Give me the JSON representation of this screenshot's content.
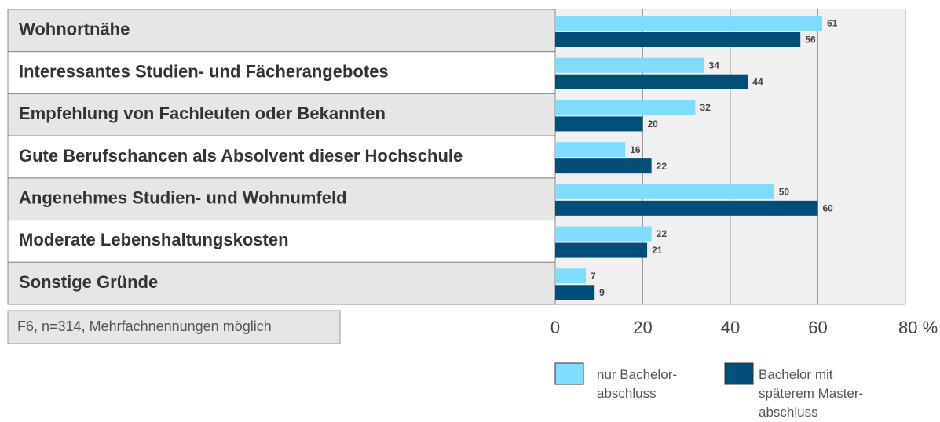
{
  "chart_data": {
    "type": "bar",
    "orientation": "horizontal",
    "categories": [
      "Wohnortnähe",
      "Interessantes Studien- und Fächerangebotes",
      "Empfehlung von Fachleuten oder Bekannten",
      "Gute Berufschancen als Absolvent dieser Hochschule",
      "Angenehmes Studien- und Wohnumfeld",
      "Moderate Lebenshaltungskosten",
      "Sonstige Gründe"
    ],
    "series": [
      {
        "name": "nur Bachelor-\nabschluss",
        "color": "#80dcff",
        "values": [
          61,
          34,
          32,
          16,
          50,
          22,
          7
        ]
      },
      {
        "name": "Bachelor mit\nspäterem Master-\nabschluss",
        "color": "#004f7a",
        "values": [
          56,
          44,
          20,
          22,
          60,
          21,
          9
        ]
      }
    ],
    "xlim": [
      0,
      80
    ],
    "xticks": [
      0,
      20,
      40,
      60,
      {
        "value": 80,
        "label": "80 %"
      }
    ],
    "grid": true,
    "note": "F6, n=314, Mehrfachnennungen  möglich"
  }
}
